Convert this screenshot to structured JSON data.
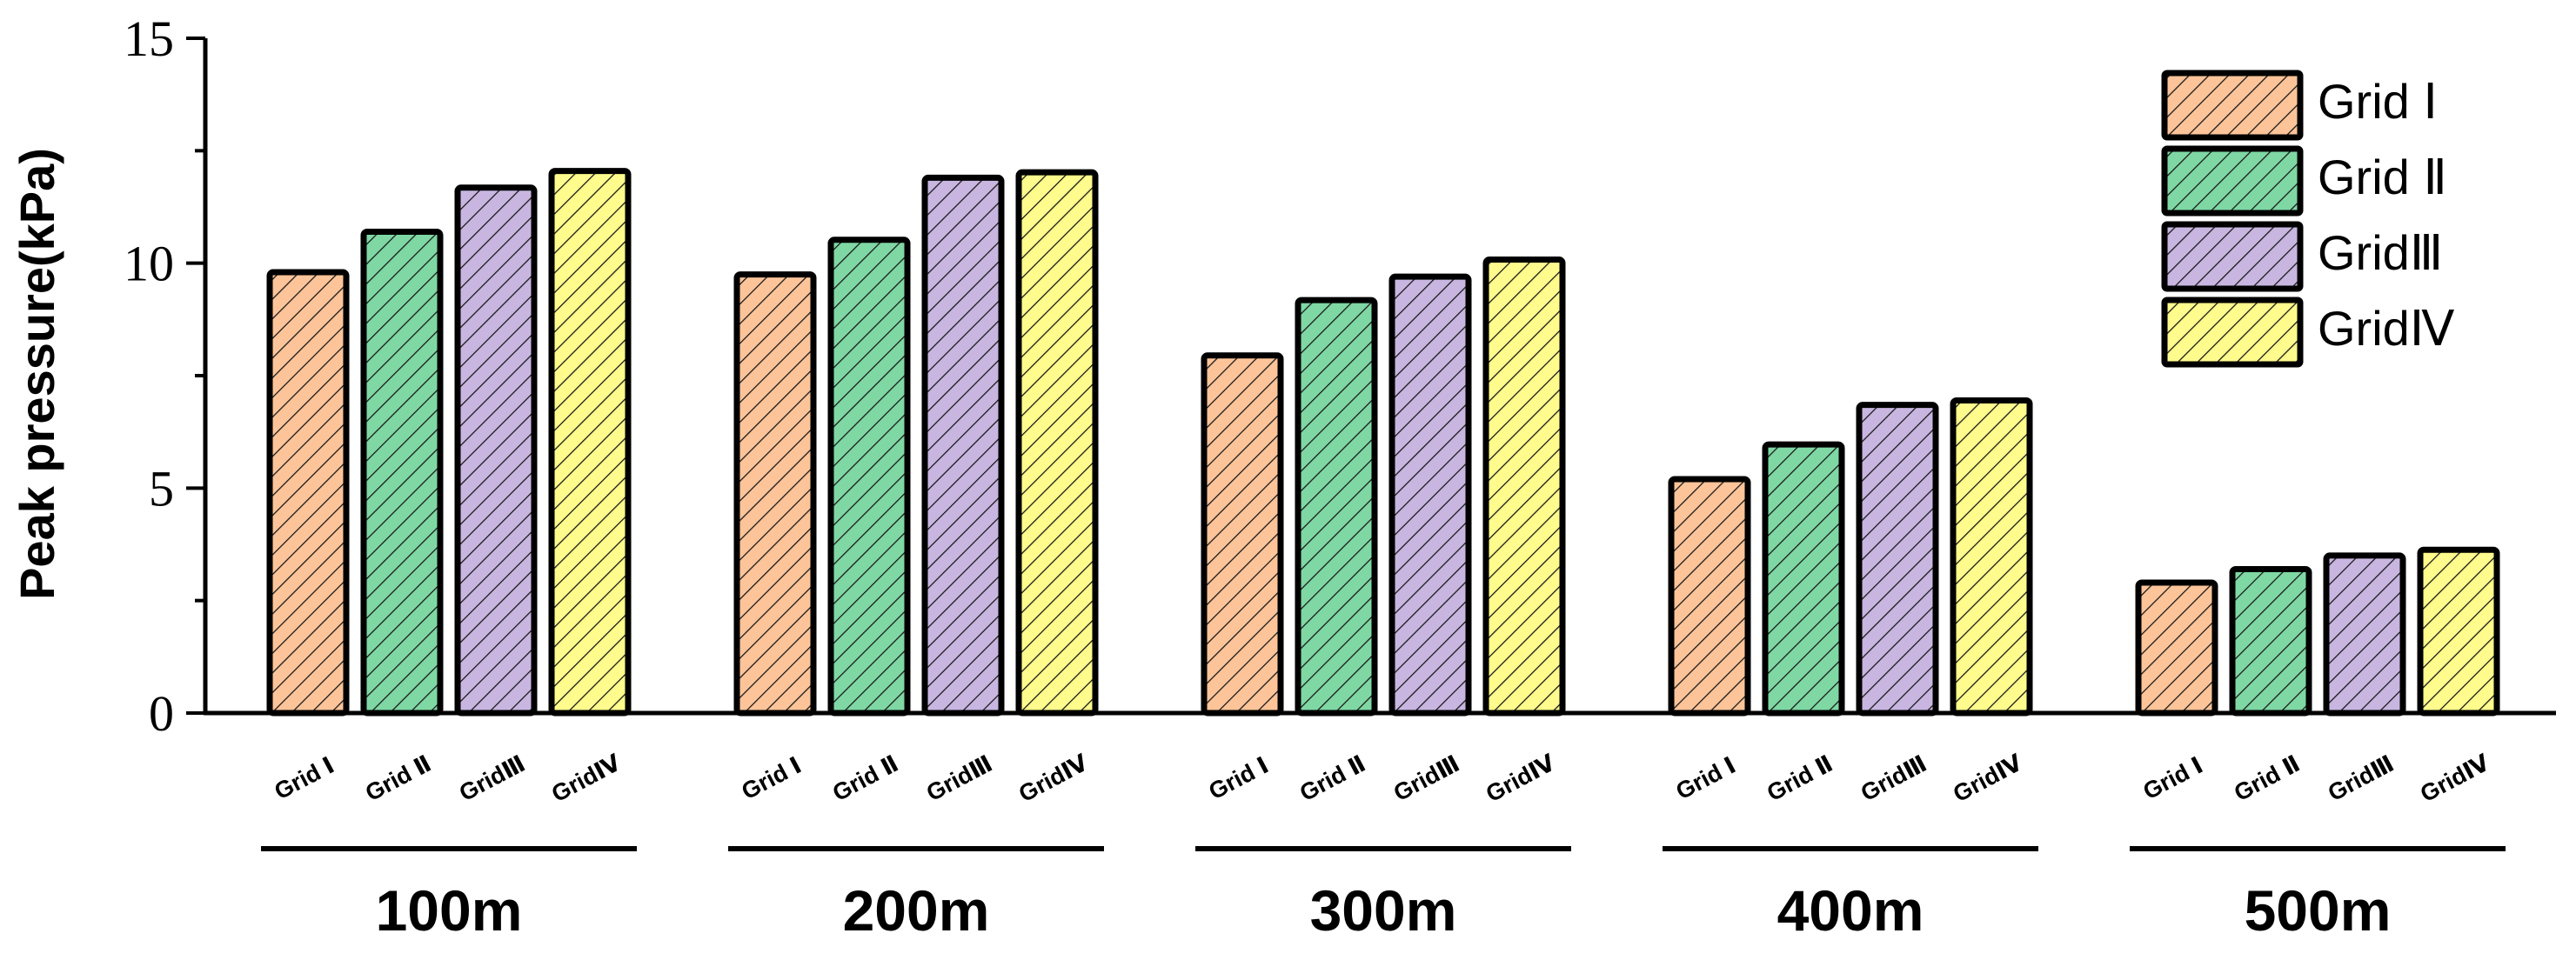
{
  "chart_data": {
    "type": "bar",
    "title": "",
    "xlabel": "",
    "ylabel": "Peak pressure(kPa)",
    "ylim": [
      0,
      15
    ],
    "yticks": [
      0,
      5,
      10,
      15
    ],
    "y_minor_step": 2.5,
    "grid": false,
    "legend_position": "top-right",
    "category_labels": [
      "100m",
      "200m",
      "300m",
      "400m",
      "500m"
    ],
    "series": [
      {
        "name": "Grid Ⅰ",
        "tick_label": "Grid Ⅰ",
        "color": "#FDC499",
        "values": [
          9.8,
          9.75,
          7.95,
          5.2,
          2.9
        ]
      },
      {
        "name": "Grid Ⅱ",
        "tick_label": "Grid Ⅱ",
        "color": "#7FD8A4",
        "values": [
          10.7,
          10.52,
          9.18,
          5.97,
          3.2
        ]
      },
      {
        "name": "GridⅢ",
        "tick_label": "GridⅢ",
        "color": "#C8B6E1",
        "values": [
          11.68,
          11.9,
          9.7,
          6.85,
          3.5
        ]
      },
      {
        "name": "GridⅣ",
        "tick_label": "GridⅣ",
        "color": "#FFFB8C",
        "values": [
          12.05,
          12.02,
          10.08,
          6.95,
          3.63
        ]
      }
    ]
  }
}
